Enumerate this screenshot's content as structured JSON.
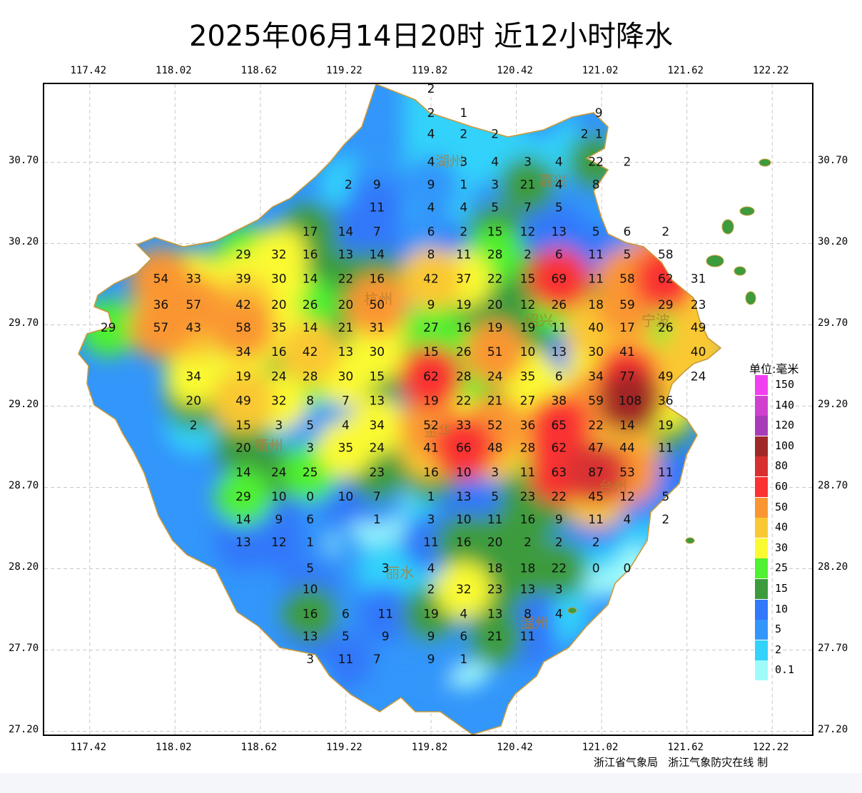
{
  "title": "2025年06月14日20时  近12小时降水",
  "axes": {
    "lon_ticks": [
      "117.42",
      "118.02",
      "118.62",
      "119.22",
      "119.82",
      "120.42",
      "121.02",
      "121.62",
      "122.22"
    ],
    "lat_ticks": [
      "30.70",
      "30.20",
      "29.70",
      "29.20",
      "28.70",
      "28.20",
      "27.70",
      "27.20"
    ],
    "lon_range": [
      117.1,
      122.5
    ],
    "lat_range": [
      27.18,
      31.18
    ]
  },
  "legend": {
    "title": "单位:毫米",
    "levels": [
      {
        "label": "150",
        "color": "#f040f0"
      },
      {
        "label": "140",
        "color": "#d040d0"
      },
      {
        "label": "120",
        "color": "#a83cb8"
      },
      {
        "label": "100",
        "color": "#a02828"
      },
      {
        "label": "80",
        "color": "#d83030"
      },
      {
        "label": "60",
        "color": "#fa3232"
      },
      {
        "label": "50",
        "color": "#fa9632"
      },
      {
        "label": "40",
        "color": "#fac832"
      },
      {
        "label": "30",
        "color": "#fafa32"
      },
      {
        "label": "25",
        "color": "#50f032"
      },
      {
        "label": "15",
        "color": "#3c9b3c"
      },
      {
        "label": "10",
        "color": "#3278fa"
      },
      {
        "label": "5",
        "color": "#3296fa"
      },
      {
        "label": "2",
        "color": "#32d2fa"
      },
      {
        "label": "0.1",
        "color": "#a0fafa"
      }
    ]
  },
  "cities": [
    {
      "name": "湖州",
      "lon": 119.95,
      "lat": 30.7
    },
    {
      "name": "嘉兴",
      "lon": 120.68,
      "lat": 30.58
    },
    {
      "name": "杭州",
      "lon": 119.45,
      "lat": 29.85
    },
    {
      "name": "绍兴",
      "lon": 120.58,
      "lat": 29.72
    },
    {
      "name": "宁波",
      "lon": 121.4,
      "lat": 29.72
    },
    {
      "name": "金华",
      "lon": 119.87,
      "lat": 29.04
    },
    {
      "name": "衢州",
      "lon": 118.68,
      "lat": 28.95
    },
    {
      "name": "台州",
      "lon": 121.1,
      "lat": 28.7
    },
    {
      "name": "丽水",
      "lon": 119.6,
      "lat": 28.17
    },
    {
      "name": "温州",
      "lon": 120.55,
      "lat": 27.86
    }
  ],
  "stations": [
    {
      "v": "2",
      "lon": 119.82,
      "lat": 31.15
    },
    {
      "v": "2",
      "lon": 119.82,
      "lat": 31.0
    },
    {
      "v": "1",
      "lon": 120.05,
      "lat": 31.0
    },
    {
      "v": "9",
      "lon": 121.0,
      "lat": 31.0
    },
    {
      "v": "4",
      "lon": 119.82,
      "lat": 30.87
    },
    {
      "v": "2",
      "lon": 120.05,
      "lat": 30.87
    },
    {
      "v": "2",
      "lon": 120.27,
      "lat": 30.87
    },
    {
      "v": "2",
      "lon": 120.9,
      "lat": 30.87
    },
    {
      "v": "1",
      "lon": 121.0,
      "lat": 30.87
    },
    {
      "v": "4",
      "lon": 119.82,
      "lat": 30.7
    },
    {
      "v": "3",
      "lon": 120.05,
      "lat": 30.7
    },
    {
      "v": "4",
      "lon": 120.27,
      "lat": 30.7
    },
    {
      "v": "3",
      "lon": 120.5,
      "lat": 30.7
    },
    {
      "v": "4",
      "lon": 120.72,
      "lat": 30.7
    },
    {
      "v": "22",
      "lon": 120.98,
      "lat": 30.7
    },
    {
      "v": "2",
      "lon": 121.2,
      "lat": 30.7
    },
    {
      "v": "2",
      "lon": 119.24,
      "lat": 30.56
    },
    {
      "v": "9",
      "lon": 119.44,
      "lat": 30.56
    },
    {
      "v": "9",
      "lon": 119.82,
      "lat": 30.56
    },
    {
      "v": "1",
      "lon": 120.05,
      "lat": 30.56
    },
    {
      "v": "3",
      "lon": 120.27,
      "lat": 30.56
    },
    {
      "v": "21",
      "lon": 120.5,
      "lat": 30.56
    },
    {
      "v": "4",
      "lon": 120.72,
      "lat": 30.56
    },
    {
      "v": "8",
      "lon": 120.98,
      "lat": 30.56
    },
    {
      "v": "11",
      "lon": 119.44,
      "lat": 30.42
    },
    {
      "v": "4",
      "lon": 119.82,
      "lat": 30.42
    },
    {
      "v": "4",
      "lon": 120.05,
      "lat": 30.42
    },
    {
      "v": "5",
      "lon": 120.27,
      "lat": 30.42
    },
    {
      "v": "7",
      "lon": 120.5,
      "lat": 30.42
    },
    {
      "v": "5",
      "lon": 120.72,
      "lat": 30.42
    },
    {
      "v": "17",
      "lon": 118.97,
      "lat": 30.27
    },
    {
      "v": "14",
      "lon": 119.22,
      "lat": 30.27
    },
    {
      "v": "7",
      "lon": 119.44,
      "lat": 30.27
    },
    {
      "v": "6",
      "lon": 119.82,
      "lat": 30.27
    },
    {
      "v": "2",
      "lon": 120.05,
      "lat": 30.27
    },
    {
      "v": "15",
      "lon": 120.27,
      "lat": 30.27
    },
    {
      "v": "12",
      "lon": 120.5,
      "lat": 30.27
    },
    {
      "v": "13",
      "lon": 120.72,
      "lat": 30.27
    },
    {
      "v": "5",
      "lon": 120.98,
      "lat": 30.27
    },
    {
      "v": "6",
      "lon": 121.2,
      "lat": 30.27
    },
    {
      "v": "2",
      "lon": 121.47,
      "lat": 30.27
    },
    {
      "v": "29",
      "lon": 118.5,
      "lat": 30.13
    },
    {
      "v": "32",
      "lon": 118.75,
      "lat": 30.13
    },
    {
      "v": "16",
      "lon": 118.97,
      "lat": 30.13
    },
    {
      "v": "13",
      "lon": 119.22,
      "lat": 30.13
    },
    {
      "v": "14",
      "lon": 119.44,
      "lat": 30.13
    },
    {
      "v": "8",
      "lon": 119.82,
      "lat": 30.13
    },
    {
      "v": "11",
      "lon": 120.05,
      "lat": 30.13
    },
    {
      "v": "28",
      "lon": 120.27,
      "lat": 30.13
    },
    {
      "v": "2",
      "lon": 120.5,
      "lat": 30.13
    },
    {
      "v": "6",
      "lon": 120.72,
      "lat": 30.13
    },
    {
      "v": "11",
      "lon": 120.98,
      "lat": 30.13
    },
    {
      "v": "5",
      "lon": 121.2,
      "lat": 30.13
    },
    {
      "v": "58",
      "lon": 121.47,
      "lat": 30.13
    },
    {
      "v": "54",
      "lon": 117.92,
      "lat": 29.98
    },
    {
      "v": "33",
      "lon": 118.15,
      "lat": 29.98
    },
    {
      "v": "39",
      "lon": 118.5,
      "lat": 29.98
    },
    {
      "v": "30",
      "lon": 118.75,
      "lat": 29.98
    },
    {
      "v": "14",
      "lon": 118.97,
      "lat": 29.98
    },
    {
      "v": "22",
      "lon": 119.22,
      "lat": 29.98
    },
    {
      "v": "16",
      "lon": 119.44,
      "lat": 29.98
    },
    {
      "v": "42",
      "lon": 119.82,
      "lat": 29.98
    },
    {
      "v": "37",
      "lon": 120.05,
      "lat": 29.98
    },
    {
      "v": "22",
      "lon": 120.27,
      "lat": 29.98
    },
    {
      "v": "15",
      "lon": 120.5,
      "lat": 29.98
    },
    {
      "v": "69",
      "lon": 120.72,
      "lat": 29.98
    },
    {
      "v": "11",
      "lon": 120.98,
      "lat": 29.98
    },
    {
      "v": "58",
      "lon": 121.2,
      "lat": 29.98
    },
    {
      "v": "62",
      "lon": 121.47,
      "lat": 29.98
    },
    {
      "v": "31",
      "lon": 121.7,
      "lat": 29.98
    },
    {
      "v": "36",
      "lon": 117.92,
      "lat": 29.82
    },
    {
      "v": "57",
      "lon": 118.15,
      "lat": 29.82
    },
    {
      "v": "42",
      "lon": 118.5,
      "lat": 29.82
    },
    {
      "v": "20",
      "lon": 118.75,
      "lat": 29.82
    },
    {
      "v": "26",
      "lon": 118.97,
      "lat": 29.82
    },
    {
      "v": "20",
      "lon": 119.22,
      "lat": 29.82
    },
    {
      "v": "50",
      "lon": 119.44,
      "lat": 29.82
    },
    {
      "v": "9",
      "lon": 119.82,
      "lat": 29.82
    },
    {
      "v": "19",
      "lon": 120.05,
      "lat": 29.82
    },
    {
      "v": "20",
      "lon": 120.27,
      "lat": 29.82
    },
    {
      "v": "12",
      "lon": 120.5,
      "lat": 29.82
    },
    {
      "v": "26",
      "lon": 120.72,
      "lat": 29.82
    },
    {
      "v": "18",
      "lon": 120.98,
      "lat": 29.82
    },
    {
      "v": "59",
      "lon": 121.2,
      "lat": 29.82
    },
    {
      "v": "29",
      "lon": 121.47,
      "lat": 29.82
    },
    {
      "v": "23",
      "lon": 121.7,
      "lat": 29.82
    },
    {
      "v": "29",
      "lon": 117.55,
      "lat": 29.68
    },
    {
      "v": "57",
      "lon": 117.92,
      "lat": 29.68
    },
    {
      "v": "43",
      "lon": 118.15,
      "lat": 29.68
    },
    {
      "v": "58",
      "lon": 118.5,
      "lat": 29.68
    },
    {
      "v": "35",
      "lon": 118.75,
      "lat": 29.68
    },
    {
      "v": "14",
      "lon": 118.97,
      "lat": 29.68
    },
    {
      "v": "21",
      "lon": 119.22,
      "lat": 29.68
    },
    {
      "v": "31",
      "lon": 119.44,
      "lat": 29.68
    },
    {
      "v": "27",
      "lon": 119.82,
      "lat": 29.68
    },
    {
      "v": "16",
      "lon": 120.05,
      "lat": 29.68
    },
    {
      "v": "19",
      "lon": 120.27,
      "lat": 29.68
    },
    {
      "v": "19",
      "lon": 120.5,
      "lat": 29.68
    },
    {
      "v": "11",
      "lon": 120.72,
      "lat": 29.68
    },
    {
      "v": "40",
      "lon": 120.98,
      "lat": 29.68
    },
    {
      "v": "17",
      "lon": 121.2,
      "lat": 29.68
    },
    {
      "v": "26",
      "lon": 121.47,
      "lat": 29.68
    },
    {
      "v": "49",
      "lon": 121.7,
      "lat": 29.68
    },
    {
      "v": "34",
      "lon": 118.5,
      "lat": 29.53
    },
    {
      "v": "16",
      "lon": 118.75,
      "lat": 29.53
    },
    {
      "v": "42",
      "lon": 118.97,
      "lat": 29.53
    },
    {
      "v": "13",
      "lon": 119.22,
      "lat": 29.53
    },
    {
      "v": "30",
      "lon": 119.44,
      "lat": 29.53
    },
    {
      "v": "15",
      "lon": 119.82,
      "lat": 29.53
    },
    {
      "v": "26",
      "lon": 120.05,
      "lat": 29.53
    },
    {
      "v": "51",
      "lon": 120.27,
      "lat": 29.53
    },
    {
      "v": "10",
      "lon": 120.5,
      "lat": 29.53
    },
    {
      "v": "13",
      "lon": 120.72,
      "lat": 29.53
    },
    {
      "v": "30",
      "lon": 120.98,
      "lat": 29.53
    },
    {
      "v": "41",
      "lon": 121.2,
      "lat": 29.53
    },
    {
      "v": "40",
      "lon": 121.7,
      "lat": 29.53
    },
    {
      "v": "34",
      "lon": 118.15,
      "lat": 29.38
    },
    {
      "v": "19",
      "lon": 118.5,
      "lat": 29.38
    },
    {
      "v": "24",
      "lon": 118.75,
      "lat": 29.38
    },
    {
      "v": "28",
      "lon": 118.97,
      "lat": 29.38
    },
    {
      "v": "30",
      "lon": 119.22,
      "lat": 29.38
    },
    {
      "v": "15",
      "lon": 119.44,
      "lat": 29.38
    },
    {
      "v": "62",
      "lon": 119.82,
      "lat": 29.38
    },
    {
      "v": "28",
      "lon": 120.05,
      "lat": 29.38
    },
    {
      "v": "24",
      "lon": 120.27,
      "lat": 29.38
    },
    {
      "v": "35",
      "lon": 120.5,
      "lat": 29.38
    },
    {
      "v": "6",
      "lon": 120.72,
      "lat": 29.38
    },
    {
      "v": "34",
      "lon": 120.98,
      "lat": 29.38
    },
    {
      "v": "77",
      "lon": 121.2,
      "lat": 29.38
    },
    {
      "v": "49",
      "lon": 121.47,
      "lat": 29.38
    },
    {
      "v": "24",
      "lon": 121.7,
      "lat": 29.38
    },
    {
      "v": "20",
      "lon": 118.15,
      "lat": 29.23
    },
    {
      "v": "49",
      "lon": 118.5,
      "lat": 29.23
    },
    {
      "v": "32",
      "lon": 118.75,
      "lat": 29.23
    },
    {
      "v": "8",
      "lon": 118.97,
      "lat": 29.23
    },
    {
      "v": "7",
      "lon": 119.22,
      "lat": 29.23
    },
    {
      "v": "13",
      "lon": 119.44,
      "lat": 29.23
    },
    {
      "v": "19",
      "lon": 119.82,
      "lat": 29.23
    },
    {
      "v": "22",
      "lon": 120.05,
      "lat": 29.23
    },
    {
      "v": "21",
      "lon": 120.27,
      "lat": 29.23
    },
    {
      "v": "27",
      "lon": 120.5,
      "lat": 29.23
    },
    {
      "v": "38",
      "lon": 120.72,
      "lat": 29.23
    },
    {
      "v": "59",
      "lon": 120.98,
      "lat": 29.23
    },
    {
      "v": "108",
      "lon": 121.22,
      "lat": 29.23
    },
    {
      "v": "36",
      "lon": 121.47,
      "lat": 29.23
    },
    {
      "v": "2",
      "lon": 118.15,
      "lat": 29.08
    },
    {
      "v": "15",
      "lon": 118.5,
      "lat": 29.08
    },
    {
      "v": "3",
      "lon": 118.75,
      "lat": 29.08
    },
    {
      "v": "5",
      "lon": 118.97,
      "lat": 29.08
    },
    {
      "v": "4",
      "lon": 119.22,
      "lat": 29.08
    },
    {
      "v": "34",
      "lon": 119.44,
      "lat": 29.08
    },
    {
      "v": "52",
      "lon": 119.82,
      "lat": 29.08
    },
    {
      "v": "33",
      "lon": 120.05,
      "lat": 29.08
    },
    {
      "v": "52",
      "lon": 120.27,
      "lat": 29.08
    },
    {
      "v": "36",
      "lon": 120.5,
      "lat": 29.08
    },
    {
      "v": "65",
      "lon": 120.72,
      "lat": 29.08
    },
    {
      "v": "22",
      "lon": 120.98,
      "lat": 29.08
    },
    {
      "v": "14",
      "lon": 121.2,
      "lat": 29.08
    },
    {
      "v": "19",
      "lon": 121.47,
      "lat": 29.08
    },
    {
      "v": "20",
      "lon": 118.5,
      "lat": 28.94
    },
    {
      "v": "3",
      "lon": 118.97,
      "lat": 28.94
    },
    {
      "v": "35",
      "lon": 119.22,
      "lat": 28.94
    },
    {
      "v": "24",
      "lon": 119.44,
      "lat": 28.94
    },
    {
      "v": "41",
      "lon": 119.82,
      "lat": 28.94
    },
    {
      "v": "66",
      "lon": 120.05,
      "lat": 28.94
    },
    {
      "v": "48",
      "lon": 120.27,
      "lat": 28.94
    },
    {
      "v": "28",
      "lon": 120.5,
      "lat": 28.94
    },
    {
      "v": "62",
      "lon": 120.72,
      "lat": 28.94
    },
    {
      "v": "47",
      "lon": 120.98,
      "lat": 28.94
    },
    {
      "v": "44",
      "lon": 121.2,
      "lat": 28.94
    },
    {
      "v": "11",
      "lon": 121.47,
      "lat": 28.94
    },
    {
      "v": "14",
      "lon": 118.5,
      "lat": 28.79
    },
    {
      "v": "24",
      "lon": 118.75,
      "lat": 28.79
    },
    {
      "v": "25",
      "lon": 118.97,
      "lat": 28.79
    },
    {
      "v": "23",
      "lon": 119.44,
      "lat": 28.79
    },
    {
      "v": "16",
      "lon": 119.82,
      "lat": 28.79
    },
    {
      "v": "10",
      "lon": 120.05,
      "lat": 28.79
    },
    {
      "v": "3",
      "lon": 120.27,
      "lat": 28.79
    },
    {
      "v": "11",
      "lon": 120.5,
      "lat": 28.79
    },
    {
      "v": "63",
      "lon": 120.72,
      "lat": 28.79
    },
    {
      "v": "87",
      "lon": 120.98,
      "lat": 28.79
    },
    {
      "v": "53",
      "lon": 121.2,
      "lat": 28.79
    },
    {
      "v": "11",
      "lon": 121.47,
      "lat": 28.79
    },
    {
      "v": "29",
      "lon": 118.5,
      "lat": 28.64
    },
    {
      "v": "10",
      "lon": 118.75,
      "lat": 28.64
    },
    {
      "v": "0",
      "lon": 118.97,
      "lat": 28.64
    },
    {
      "v": "10",
      "lon": 119.22,
      "lat": 28.64
    },
    {
      "v": "7",
      "lon": 119.44,
      "lat": 28.64
    },
    {
      "v": "1",
      "lon": 119.82,
      "lat": 28.64
    },
    {
      "v": "13",
      "lon": 120.05,
      "lat": 28.64
    },
    {
      "v": "5",
      "lon": 120.27,
      "lat": 28.64
    },
    {
      "v": "23",
      "lon": 120.5,
      "lat": 28.64
    },
    {
      "v": "22",
      "lon": 120.72,
      "lat": 28.64
    },
    {
      "v": "45",
      "lon": 120.98,
      "lat": 28.64
    },
    {
      "v": "12",
      "lon": 121.2,
      "lat": 28.64
    },
    {
      "v": "5",
      "lon": 121.47,
      "lat": 28.64
    },
    {
      "v": "14",
      "lon": 118.5,
      "lat": 28.5
    },
    {
      "v": "9",
      "lon": 118.75,
      "lat": 28.5
    },
    {
      "v": "6",
      "lon": 118.97,
      "lat": 28.5
    },
    {
      "v": "1",
      "lon": 119.44,
      "lat": 28.5
    },
    {
      "v": "3",
      "lon": 119.82,
      "lat": 28.5
    },
    {
      "v": "10",
      "lon": 120.05,
      "lat": 28.5
    },
    {
      "v": "11",
      "lon": 120.27,
      "lat": 28.5
    },
    {
      "v": "16",
      "lon": 120.5,
      "lat": 28.5
    },
    {
      "v": "9",
      "lon": 120.72,
      "lat": 28.5
    },
    {
      "v": "11",
      "lon": 120.98,
      "lat": 28.5
    },
    {
      "v": "4",
      "lon": 121.2,
      "lat": 28.5
    },
    {
      "v": "2",
      "lon": 121.47,
      "lat": 28.5
    },
    {
      "v": "13",
      "lon": 118.5,
      "lat": 28.36
    },
    {
      "v": "12",
      "lon": 118.75,
      "lat": 28.36
    },
    {
      "v": "1",
      "lon": 118.97,
      "lat": 28.36
    },
    {
      "v": "11",
      "lon": 119.82,
      "lat": 28.36
    },
    {
      "v": "16",
      "lon": 120.05,
      "lat": 28.36
    },
    {
      "v": "20",
      "lon": 120.27,
      "lat": 28.36
    },
    {
      "v": "2",
      "lon": 120.5,
      "lat": 28.36
    },
    {
      "v": "2",
      "lon": 120.72,
      "lat": 28.36
    },
    {
      "v": "2",
      "lon": 120.98,
      "lat": 28.36
    },
    {
      "v": "5",
      "lon": 118.97,
      "lat": 28.2
    },
    {
      "v": "3",
      "lon": 119.5,
      "lat": 28.2
    },
    {
      "v": "4",
      "lon": 119.82,
      "lat": 28.2
    },
    {
      "v": "18",
      "lon": 120.27,
      "lat": 28.2
    },
    {
      "v": "18",
      "lon": 120.5,
      "lat": 28.2
    },
    {
      "v": "22",
      "lon": 120.72,
      "lat": 28.2
    },
    {
      "v": "0",
      "lon": 120.98,
      "lat": 28.2
    },
    {
      "v": "0",
      "lon": 121.2,
      "lat": 28.2
    },
    {
      "v": "10",
      "lon": 118.97,
      "lat": 28.07
    },
    {
      "v": "2",
      "lon": 119.82,
      "lat": 28.07
    },
    {
      "v": "32",
      "lon": 120.05,
      "lat": 28.07
    },
    {
      "v": "23",
      "lon": 120.27,
      "lat": 28.07
    },
    {
      "v": "13",
      "lon": 120.5,
      "lat": 28.07
    },
    {
      "v": "3",
      "lon": 120.72,
      "lat": 28.07
    },
    {
      "v": "16",
      "lon": 118.97,
      "lat": 27.92
    },
    {
      "v": "6",
      "lon": 119.22,
      "lat": 27.92
    },
    {
      "v": "11",
      "lon": 119.5,
      "lat": 27.92
    },
    {
      "v": "19",
      "lon": 119.82,
      "lat": 27.92
    },
    {
      "v": "4",
      "lon": 120.05,
      "lat": 27.92
    },
    {
      "v": "13",
      "lon": 120.27,
      "lat": 27.92
    },
    {
      "v": "8",
      "lon": 120.5,
      "lat": 27.92
    },
    {
      "v": "4",
      "lon": 120.72,
      "lat": 27.92
    },
    {
      "v": "13",
      "lon": 118.97,
      "lat": 27.78
    },
    {
      "v": "5",
      "lon": 119.22,
      "lat": 27.78
    },
    {
      "v": "9",
      "lon": 119.5,
      "lat": 27.78
    },
    {
      "v": "9",
      "lon": 119.82,
      "lat": 27.78
    },
    {
      "v": "6",
      "lon": 120.05,
      "lat": 27.78
    },
    {
      "v": "21",
      "lon": 120.27,
      "lat": 27.78
    },
    {
      "v": "11",
      "lon": 120.5,
      "lat": 27.78
    },
    {
      "v": "3",
      "lon": 118.97,
      "lat": 27.64
    },
    {
      "v": "11",
      "lon": 119.22,
      "lat": 27.64
    },
    {
      "v": "7",
      "lon": 119.44,
      "lat": 27.64
    },
    {
      "v": "9",
      "lon": 119.82,
      "lat": 27.64
    },
    {
      "v": "1",
      "lon": 120.05,
      "lat": 27.64
    }
  ],
  "credit": "浙江省气象局   浙江气象防灾在线 制"
}
